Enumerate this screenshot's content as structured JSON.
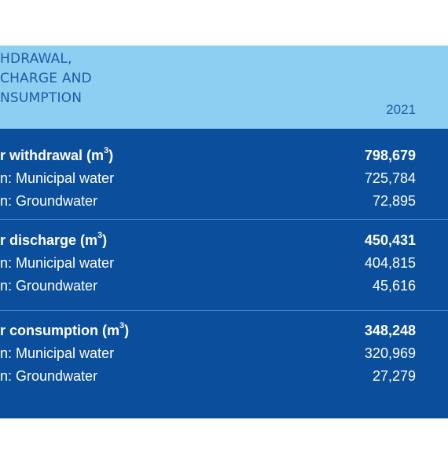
{
  "header": {
    "title_lines": [
      "HDRAWAL,",
      "CHARGE AND",
      "NSUMPTION"
    ],
    "year": "2021"
  },
  "groups": [
    {
      "total_label": "r withdrawal (m",
      "total_value": "798,679",
      "rows": [
        {
          "label": "n: Municipal water",
          "value": "725,784"
        },
        {
          "label": "n: Groundwater",
          "value": "72,895"
        }
      ]
    },
    {
      "total_label": "r discharge (m",
      "total_value": "450,431",
      "rows": [
        {
          "label": "n: Municipal water",
          "value": "404,815"
        },
        {
          "label": "n: Groundwater",
          "value": "45,616"
        }
      ]
    },
    {
      "total_label": "r consumption (m",
      "total_value": "348,248",
      "rows": [
        {
          "label": "n: Municipal water",
          "value": "320,969"
        },
        {
          "label": "n: Groundwater",
          "value": "27,279"
        }
      ]
    }
  ],
  "unit_superscript": "3",
  "unit_close": ")"
}
